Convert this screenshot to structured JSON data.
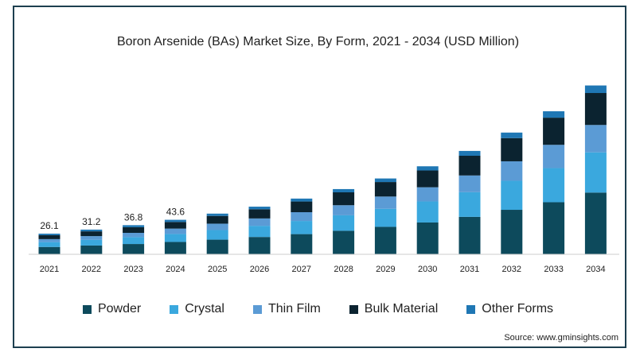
{
  "chart_data": {
    "type": "bar",
    "stacked": true,
    "title": "Boron Arsenide (BAs) Market Size, By Form, 2021 - 2034 (USD Million)",
    "categories": [
      "2021",
      "2022",
      "2023",
      "2024",
      "2025",
      "2026",
      "2027",
      "2028",
      "2029",
      "2030",
      "2031",
      "2032",
      "2033",
      "2034"
    ],
    "totals_labels": [
      {
        "index": 0,
        "text": "26.1"
      },
      {
        "index": 1,
        "text": "31.2"
      },
      {
        "index": 2,
        "text": "36.8"
      },
      {
        "index": 3,
        "text": "43.6"
      }
    ],
    "series": [
      {
        "name": "Powder",
        "color": "#0d4a5c",
        "values": [
          9.3,
          11.1,
          13.0,
          15.6,
          18.5,
          21.9,
          25.5,
          29.7,
          34.7,
          40.2,
          47.3,
          56.2,
          65.8,
          78.0
        ]
      },
      {
        "name": "Crystal",
        "color": "#3aa8de",
        "values": [
          6.1,
          7.3,
          8.7,
          10.1,
          12.1,
          14.1,
          16.6,
          19.6,
          22.8,
          26.6,
          31.2,
          36.7,
          43.1,
          50.8
        ]
      },
      {
        "name": "Thin Film",
        "color": "#5b9bd5",
        "values": [
          3.8,
          4.6,
          5.4,
          6.8,
          8.1,
          9.3,
          11.1,
          12.7,
          15.5,
          17.9,
          21.1,
          24.6,
          29.4,
          34.6
        ]
      },
      {
        "name": "Bulk Material",
        "color": "#0b2330",
        "values": [
          5.0,
          6.0,
          7.1,
          8.3,
          9.8,
          11.6,
          13.5,
          16.3,
          18.3,
          21.2,
          24.9,
          29.3,
          34.3,
          40.4
        ]
      },
      {
        "name": "Other Forms",
        "color": "#1f77b4",
        "values": [
          1.9,
          2.2,
          2.6,
          2.8,
          2.9,
          3.3,
          3.7,
          4.1,
          4.5,
          5.3,
          6.1,
          7.0,
          8.1,
          9.5
        ]
      }
    ],
    "ylim": [
      0,
      250
    ],
    "grid": false,
    "legend_position": "bottom"
  },
  "source_text": "Source: www.gminsights.com"
}
